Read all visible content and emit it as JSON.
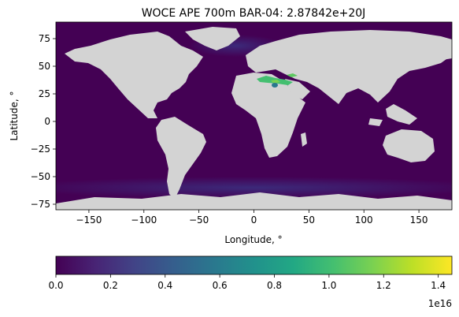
{
  "chart_data": {
    "type": "heatmap",
    "title": "WOCE APE 700m BAR-04: 2.87842e+20J",
    "xlabel": "Longitude, °",
    "ylabel": "Latitude, °",
    "xlim": [
      -180,
      180
    ],
    "ylim": [
      -80,
      90
    ],
    "xticks": [
      -150,
      -100,
      -50,
      0,
      50,
      100,
      150
    ],
    "xtick_labels": [
      "−150",
      "−100",
      "−50",
      "0",
      "50",
      "100",
      "150"
    ],
    "yticks": [
      75,
      50,
      25,
      0,
      -25,
      -50,
      -75
    ],
    "ytick_labels": [
      "75",
      "50",
      "25",
      "0",
      "−25",
      "−50",
      "−75"
    ],
    "land_color": "#d3d3d3",
    "colormap": "viridis",
    "colorbar": {
      "range": [
        0,
        1.45
      ],
      "ticks": [
        0,
        0.2,
        0.4,
        0.6,
        0.8,
        1.0,
        1.2,
        1.4
      ],
      "tick_labels": [
        "0.0",
        "0.2",
        "0.4",
        "0.6",
        "0.8",
        "1.0",
        "1.2",
        "1.4"
      ],
      "scale_label": "1e16",
      "orientation": "horizontal"
    },
    "field_description_levels": {
      "background": 0.02,
      "southern_ocean": 0.1,
      "north_atlantic": 0.12,
      "mediterranean_peak": 1.0
    }
  }
}
